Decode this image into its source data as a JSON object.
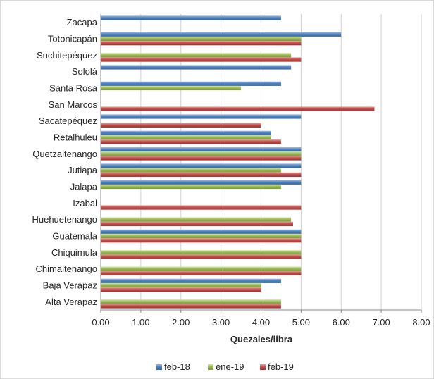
{
  "chart_data": {
    "type": "bar",
    "orientation": "horizontal",
    "title": "",
    "xlabel": "Quezales/libra",
    "ylabel": "",
    "xlim": [
      0,
      8
    ],
    "xticks": [
      "0.00",
      "1.00",
      "2.00",
      "3.00",
      "4.00",
      "5.00",
      "6.00",
      "7.00",
      "8.00"
    ],
    "grid": "vertical",
    "legend_position": "bottom",
    "categories": [
      "Zacapa",
      "Totonicapán",
      "Suchitepéquez",
      "Sololá",
      "Santa Rosa",
      "San Marcos",
      "Sacatepéquez",
      "Retalhuleu",
      "Quetzaltenango",
      "Jutiapa",
      "Jalapa",
      "Izabal",
      "Huehuetenango",
      "Guatemala",
      "Chiquimula",
      "Chimaltenango",
      "Baja Verapaz",
      "Alta Verapaz"
    ],
    "series": [
      {
        "name": "feb-18",
        "color": "#4f81bd",
        "values": [
          4.5,
          6.0,
          null,
          4.75,
          4.5,
          null,
          5.0,
          4.25,
          5.0,
          5.0,
          5.0,
          null,
          null,
          5.0,
          null,
          null,
          4.5,
          null
        ]
      },
      {
        "name": "ene-19",
        "color": "#9bbb59",
        "values": [
          null,
          5.0,
          4.75,
          null,
          3.5,
          null,
          null,
          4.25,
          5.0,
          4.5,
          4.5,
          null,
          4.75,
          5.0,
          5.0,
          5.0,
          4.0,
          4.5
        ]
      },
      {
        "name": "feb-19",
        "color": "#c0504d",
        "values": [
          null,
          5.0,
          5.0,
          null,
          null,
          6.83,
          4.0,
          4.5,
          5.0,
          5.0,
          null,
          5.0,
          4.8,
          5.0,
          5.0,
          5.0,
          4.0,
          4.5
        ]
      }
    ]
  }
}
